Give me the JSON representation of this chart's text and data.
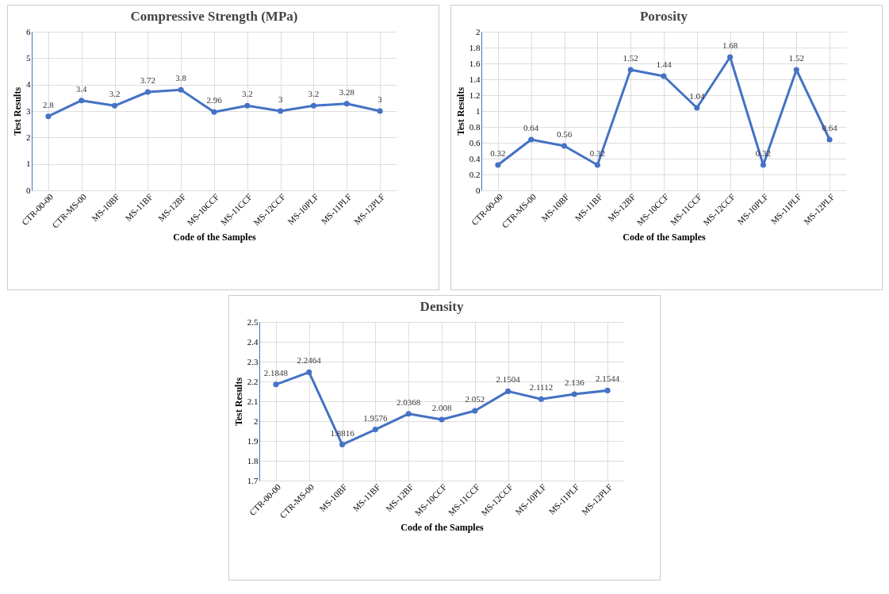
{
  "chart_data": [
    {
      "type": "line",
      "title": "Compressive Strength (MPa)",
      "xlabel": "Code of the Samples",
      "ylabel": "Test Results",
      "categories": [
        "CTR-00-00",
        "CTR-MS-00",
        "MS-10BF",
        "MS-11BF",
        "MS-12BF",
        "MS-10CCF",
        "MS-11CCF",
        "MS-12CCF",
        "MS-10PLF",
        "MS-11PLF",
        "MS-12PLF"
      ],
      "values": [
        2.8,
        3.4,
        3.2,
        3.72,
        3.8,
        2.96,
        3.2,
        3,
        3.2,
        3.28,
        3
      ],
      "color": "#4472c4",
      "ylim": [
        0,
        6
      ],
      "yticks": [
        0,
        1,
        2,
        3,
        4,
        5,
        6
      ],
      "grid": true,
      "marker": "circle",
      "data_labels": true
    },
    {
      "type": "line",
      "title": "Porosity",
      "xlabel": "Code of the Samples",
      "ylabel": "Test Results",
      "categories": [
        "CTR-00-00",
        "CTR-MS-00",
        "MS-10BF",
        "MS-11BF",
        "MS-12BF",
        "MS-10CCF",
        "MS-11CCF",
        "MS-12CCF",
        "MS-10PLF",
        "MS-11PLF",
        "MS-12PLF"
      ],
      "values": [
        0.32,
        0.64,
        0.56,
        0.32,
        1.52,
        1.44,
        1.04,
        1.68,
        0.32,
        1.52,
        0.64
      ],
      "color": "#4472c4",
      "ylim": [
        0,
        2
      ],
      "yticks": [
        0,
        0.2,
        0.4,
        0.6,
        0.8,
        1,
        1.2,
        1.4,
        1.6,
        1.8,
        2
      ],
      "grid": true,
      "marker": "circle",
      "data_labels": true
    },
    {
      "type": "line",
      "title": "Density",
      "xlabel": "Code of the Samples",
      "ylabel": "Test Results",
      "categories": [
        "CTR-00-00",
        "CTR-MS-00",
        "MS-10BF",
        "MS-11BF",
        "MS-12BF",
        "MS-10CCF",
        "MS-11CCF",
        "MS-12CCF",
        "MS-10PLF",
        "MS-11PLF",
        "MS-12PLF"
      ],
      "values": [
        2.1848,
        2.2464,
        1.8816,
        1.9576,
        2.0368,
        2.008,
        2.052,
        2.1504,
        2.1112,
        2.136,
        2.1544
      ],
      "color": "#4472c4",
      "ylim": [
        1.7,
        2.5
      ],
      "yticks": [
        1.7,
        1.8,
        1.9,
        2,
        2.1,
        2.2,
        2.3,
        2.4,
        2.5
      ],
      "grid": true,
      "marker": "circle",
      "data_labels": true
    }
  ]
}
